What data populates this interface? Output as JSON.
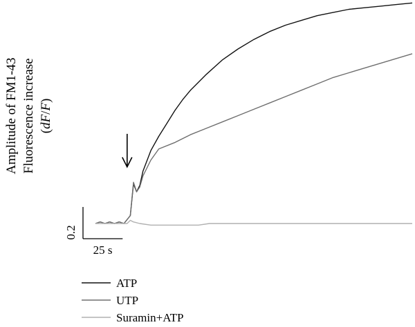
{
  "chart_data": {
    "type": "line",
    "title": "",
    "xlabel": "",
    "ylabel": {
      "line1": "Amplitude of FM1-43",
      "line2": "Fluorescence increase",
      "line3_open": "(",
      "line3_italic_d": "d",
      "line3_italic_F1": "F",
      "line3_slash": "/",
      "line3_italic_F2": "F",
      "line3_close": ")"
    },
    "x_unit": "s",
    "y_unit": "dF/F",
    "xlim": [
      0,
      200
    ],
    "ylim": [
      -0.05,
      1.4
    ],
    "scale_bar": {
      "x_value": 25,
      "x_label": "25 s",
      "y_value": 0.2,
      "y_label": "0.2"
    },
    "stimulus_arrow_x": 20,
    "legend_position": "bottom-left",
    "series": [
      {
        "name": "ATP",
        "color": "#111111",
        "x": [
          0,
          3,
          6,
          9,
          12,
          15,
          18,
          22,
          24,
          26,
          28,
          30,
          35,
          40,
          45,
          50,
          55,
          60,
          70,
          80,
          90,
          100,
          110,
          120,
          130,
          140,
          150,
          160,
          170,
          180,
          190,
          200
        ],
        "y": [
          0.0,
          0.01,
          0.0,
          0.01,
          0.0,
          0.01,
          0.0,
          0.05,
          0.25,
          0.2,
          0.24,
          0.33,
          0.46,
          0.55,
          0.63,
          0.71,
          0.78,
          0.84,
          0.94,
          1.03,
          1.1,
          1.16,
          1.21,
          1.25,
          1.28,
          1.31,
          1.33,
          1.35,
          1.36,
          1.37,
          1.38,
          1.39
        ]
      },
      {
        "name": "UTP",
        "color": "#6e6e6e",
        "x": [
          0,
          3,
          6,
          9,
          12,
          15,
          18,
          22,
          24,
          26,
          28,
          30,
          35,
          40,
          50,
          60,
          70,
          80,
          90,
          100,
          110,
          120,
          130,
          140,
          150,
          160,
          170,
          180,
          190,
          200
        ],
        "y": [
          0.0,
          0.01,
          0.0,
          0.01,
          0.0,
          0.01,
          0.0,
          0.05,
          0.26,
          0.2,
          0.23,
          0.3,
          0.4,
          0.47,
          0.51,
          0.56,
          0.6,
          0.64,
          0.68,
          0.72,
          0.76,
          0.8,
          0.84,
          0.88,
          0.92,
          0.95,
          0.98,
          1.01,
          1.04,
          1.07
        ]
      },
      {
        "name": "Suramin+ATP",
        "color": "#b0b0b0",
        "x": [
          0,
          5,
          10,
          15,
          20,
          22,
          24,
          28,
          35,
          45,
          55,
          65,
          72,
          80,
          100,
          150,
          200
        ],
        "y": [
          0.0,
          0.0,
          0.0,
          0.0,
          0.0,
          0.02,
          0.01,
          0.0,
          -0.01,
          -0.01,
          -0.01,
          -0.01,
          0.0,
          0.0,
          0.0,
          0.0,
          0.0
        ]
      }
    ]
  }
}
